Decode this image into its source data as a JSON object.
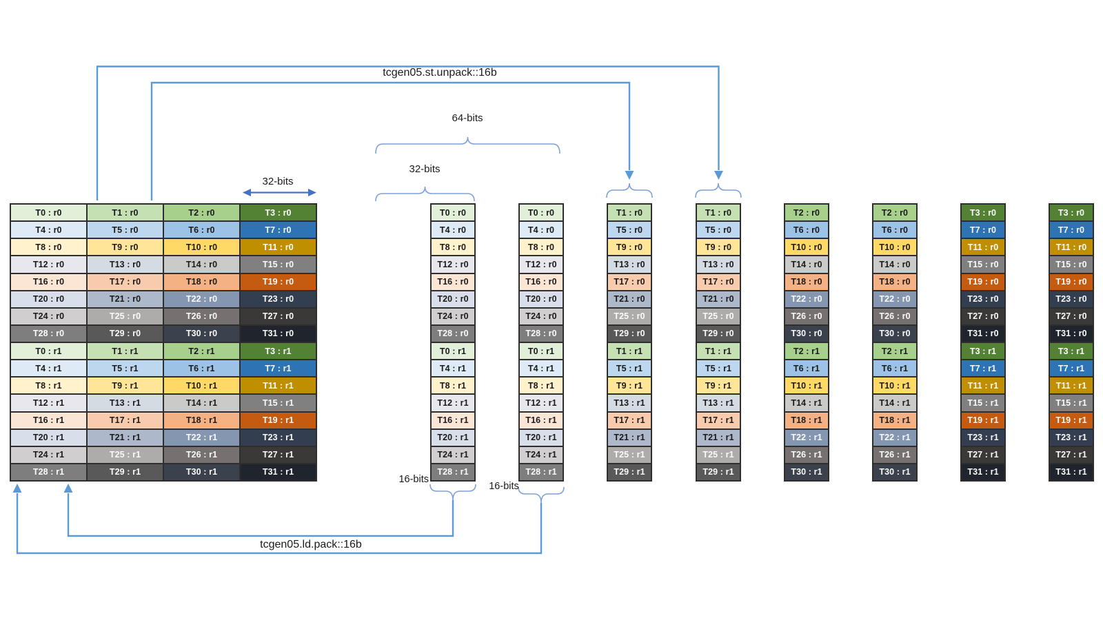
{
  "titles": {
    "st_unpack": "tcgen05.st.unpack::16b",
    "ld_pack": "tcgen05.ld.pack::16b"
  },
  "labels": {
    "bits64": "64-bits",
    "bits32_brace": "32-bits",
    "bits32_arrow": "32-bits",
    "bits16_left": "16-bits",
    "bits16_right": "16-bits"
  },
  "colors": {
    "connector_blue": "#5B9BD5",
    "brace_blue": "#7FA1D8",
    "measure_arrow_blue": "#4472C4",
    "cell_border": "#2e2e2e",
    "text_dark": "#1a1a1a",
    "text_light": "#FAFAFA"
  },
  "palette": [
    {
      "bg": [
        "#E2EFD9",
        "#C5E0B3",
        "#A8D08D",
        "#548235"
      ],
      "fg": [
        "d",
        "d",
        "d",
        "l"
      ]
    },
    {
      "bg": [
        "#DEEBF6",
        "#BDD7EE",
        "#9CC2E5",
        "#2E74B5"
      ],
      "fg": [
        "d",
        "d",
        "d",
        "l"
      ]
    },
    {
      "bg": [
        "#FFF2CC",
        "#FFE598",
        "#FFD965",
        "#BF8F00"
      ],
      "fg": [
        "d",
        "d",
        "d",
        "l"
      ]
    },
    {
      "bg": [
        "#E9E7EE",
        "#D5DBE3",
        "#CACAC8",
        "#808080"
      ],
      "fg": [
        "d",
        "d",
        "d",
        "l"
      ]
    },
    {
      "bg": [
        "#FBE5D5",
        "#F7CBAC",
        "#F4B183",
        "#C55A11"
      ],
      "fg": [
        "d",
        "d",
        "d",
        "l"
      ]
    },
    {
      "bg": [
        "#D9DFEA",
        "#ADB9CA",
        "#8496B0",
        "#333F50"
      ],
      "fg": [
        "d",
        "d",
        "l",
        "l"
      ]
    },
    {
      "bg": [
        "#D0CECE",
        "#AEABAB",
        "#767070",
        "#3B3838"
      ],
      "fg": [
        "d",
        "l",
        "l",
        "l"
      ]
    },
    {
      "bg": [
        "#7E7E7E",
        "#595959",
        "#3B414D",
        "#20252D"
      ],
      "fg": [
        "l",
        "l",
        "l",
        "l"
      ]
    }
  ],
  "main_table": {
    "rows": [
      [
        "T0 : r0",
        "T1 : r0",
        "T2 : r0",
        "T3 : r0"
      ],
      [
        "T4 : r0",
        "T5 : r0",
        "T6 : r0",
        "T7 : r0"
      ],
      [
        "T8 : r0",
        "T9 : r0",
        "T10 : r0",
        "T11 : r0"
      ],
      [
        "T12 : r0",
        "T13 : r0",
        "T14 : r0",
        "T15 : r0"
      ],
      [
        "T16 : r0",
        "T17 : r0",
        "T18 : r0",
        "T19 : r0"
      ],
      [
        "T20 : r0",
        "T21 : r0",
        "T22 : r0",
        "T23 : r0"
      ],
      [
        "T24 : r0",
        "T25 : r0",
        "T26 : r0",
        "T27 : r0"
      ],
      [
        "T28 : r0",
        "T29 : r0",
        "T30 : r0",
        "T31 : r0"
      ],
      [
        "T0 : r1",
        "T1 : r1",
        "T2 : r1",
        "T3 : r1"
      ],
      [
        "T4 : r1",
        "T5 : r1",
        "T6 : r1",
        "T7 : r1"
      ],
      [
        "T8 : r1",
        "T9 : r1",
        "T10 : r1",
        "T11 : r1"
      ],
      [
        "T12 : r1",
        "T13 : r1",
        "T14 : r1",
        "T15 : r1"
      ],
      [
        "T16 : r1",
        "T17 : r1",
        "T18 : r1",
        "T19 : r1"
      ],
      [
        "T20 : r1",
        "T21 : r1",
        "T22 : r1",
        "T23 : r1"
      ],
      [
        "T24 : r1",
        "T25 : r1",
        "T26 : r1",
        "T27 : r1"
      ],
      [
        "T28 : r1",
        "T29 : r1",
        "T30 : r1",
        "T31 : r1"
      ]
    ]
  },
  "lane_tables": [
    {
      "name": "t0-lane-copy-1",
      "column": 0,
      "labels": [
        "T0 : r0",
        "T4 : r0",
        "T8 : r0",
        "T12 : r0",
        "T16 : r0",
        "T20 : r0",
        "T24 : r0",
        "T28 : r0",
        "T0 : r1",
        "T4 : r1",
        "T8 : r1",
        "T12 : r1",
        "T16 : r1",
        "T20 : r1",
        "T24 : r1",
        "T28 : r1"
      ]
    },
    {
      "name": "t0-lane-copy-2",
      "column": 0,
      "labels": [
        "T0 : r0",
        "T4 : r0",
        "T8 : r0",
        "T12 : r0",
        "T16 : r0",
        "T20 : r0",
        "T24 : r0",
        "T28 : r0",
        "T0 : r1",
        "T4 : r1",
        "T8 : r1",
        "T12 : r1",
        "T16 : r1",
        "T20 : r1",
        "T24 : r1",
        "T28 : r1"
      ]
    },
    {
      "name": "t1-lane-copy-1",
      "column": 1,
      "labels": [
        "T1 : r0",
        "T5 : r0",
        "T9 : r0",
        "T13 : r0",
        "T17 : r0",
        "T21 : r0",
        "T25 : r0",
        "T29 : r0",
        "T1 : r1",
        "T5 : r1",
        "T9 : r1",
        "T13 : r1",
        "T17 : r1",
        "T21 : r1",
        "T25 : r1",
        "T29 : r1"
      ]
    },
    {
      "name": "t1-lane-copy-2",
      "column": 1,
      "labels": [
        "T1 : r0",
        "T5 : r0",
        "T9 : r0",
        "T13 : r0",
        "T17 : r0",
        "T21 : r0",
        "T25 : r0",
        "T29 : r0",
        "T1 : r1",
        "T5 : r1",
        "T9 : r1",
        "T13 : r1",
        "T17 : r1",
        "T21 : r1",
        "T25 : r1",
        "T29 : r1"
      ]
    },
    {
      "name": "t2-lane-copy-1",
      "column": 2,
      "labels": [
        "T2 : r0",
        "T6 : r0",
        "T10 : r0",
        "T14 : r0",
        "T18 : r0",
        "T22 : r0",
        "T26 : r0",
        "T30 : r0",
        "T2 : r1",
        "T6 : r1",
        "T10 : r1",
        "T14 : r1",
        "T18 : r1",
        "T22 : r1",
        "T26 : r1",
        "T30 : r1"
      ]
    },
    {
      "name": "t2-lane-copy-2",
      "column": 2,
      "labels": [
        "T2 : r0",
        "T6 : r0",
        "T10 : r0",
        "T14 : r0",
        "T18 : r0",
        "T22 : r0",
        "T26 : r0",
        "T30 : r0",
        "T2 : r1",
        "T6 : r1",
        "T10 : r1",
        "T14 : r1",
        "T18 : r1",
        "T22 : r1",
        "T26 : r1",
        "T30 : r1"
      ]
    },
    {
      "name": "t3-lane-copy-1",
      "column": 3,
      "labels": [
        "T3 : r0",
        "T7 : r0",
        "T11 : r0",
        "T15 : r0",
        "T19 : r0",
        "T23 : r0",
        "T27 : r0",
        "T31 : r0",
        "T3 : r1",
        "T7 : r1",
        "T11 : r1",
        "T15 : r1",
        "T19 : r1",
        "T23 : r1",
        "T27 : r1",
        "T31 : r1"
      ]
    },
    {
      "name": "t3-lane-copy-2",
      "column": 3,
      "labels": [
        "T3 : r0",
        "T7 : r0",
        "T11 : r0",
        "T15 : r0",
        "T19 : r0",
        "T23 : r0",
        "T27 : r0",
        "T31 : r0",
        "T3 : r1",
        "T7 : r1",
        "T11 : r1",
        "T15 : r1",
        "T19 : r1",
        "T23 : r1",
        "T27 : r1",
        "T31 : r1"
      ]
    }
  ]
}
